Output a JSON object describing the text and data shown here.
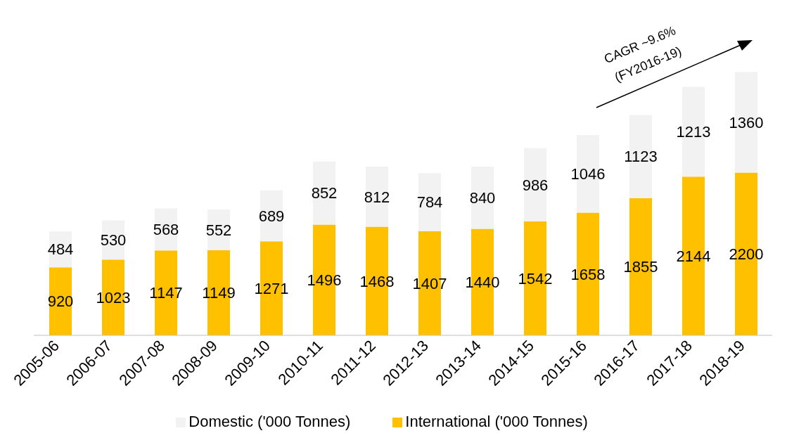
{
  "chart_data": {
    "type": "bar",
    "stacked": true,
    "data_labels": true,
    "legend": "bottom",
    "categories": [
      "2005-06",
      "2006-07",
      "2007-08",
      "2008-09",
      "2009-10",
      "2010-11",
      "2011-12",
      "2012-13",
      "2013-14",
      "2014-15",
      "2015-16",
      "2016-17",
      "2017-18",
      "2018-19"
    ],
    "series": [
      {
        "name": "International ('000 Tonnes)",
        "color": "#ffc000",
        "values": [
          920,
          1023,
          1147,
          1149,
          1271,
          1496,
          1468,
          1407,
          1440,
          1542,
          1658,
          1855,
          2144,
          2200
        ]
      },
      {
        "name": "Domestic ('000 Tonnes)",
        "color": "#f2f2f2",
        "values": [
          484,
          530,
          568,
          552,
          689,
          852,
          812,
          784,
          840,
          986,
          1046,
          1123,
          1213,
          1360
        ]
      }
    ],
    "annotations": [
      "CAGR ~9.6%",
      "(FY2016-19)"
    ]
  }
}
